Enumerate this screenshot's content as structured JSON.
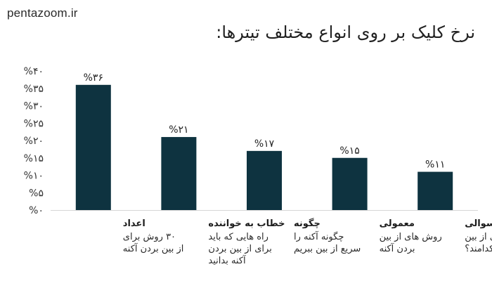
{
  "watermark": "pentazoom.ir",
  "chart_data": {
    "type": "bar",
    "title": "نرخ کلیک بر روی انواع مختلف تیترها:",
    "xlabel": "",
    "ylabel": "",
    "ylim": [
      0,
      40
    ],
    "ytick_labels": [
      "%۰",
      "%۵",
      "%۱۰",
      "%۱۵",
      "%۲۰",
      "%۲۵",
      "%۳۰",
      "%۳۵",
      "%۴۰"
    ],
    "ytick_values": [
      0,
      5,
      10,
      15,
      20,
      25,
      30,
      35,
      40
    ],
    "grid": false,
    "bar_color": "#0e3340",
    "categories": [
      {
        "name": "اعداد",
        "desc": [
          "۳۰ روش برای",
          "از بین بردن آکنه"
        ]
      },
      {
        "name": "خطاب به خواننده",
        "desc": [
          "راه هایی که باید",
          "برای از بین بردن",
          "آکنه بدانید"
        ]
      },
      {
        "name": "چگونه",
        "desc": [
          "چگونه آکنه را",
          "سریع از بین ببریم"
        ]
      },
      {
        "name": "معمولی",
        "desc": [
          "روش های از بین",
          "بردن آکنه"
        ]
      },
      {
        "name": "سوالی",
        "desc": [
          "روش های از بین",
          "بردن آکنه کدامند؟"
        ]
      }
    ],
    "values": [
      36,
      21,
      17,
      15,
      11
    ],
    "data_labels": [
      "%۳۶",
      "%۲۱",
      "%۱۷",
      "%۱۵",
      "%۱۱"
    ]
  }
}
